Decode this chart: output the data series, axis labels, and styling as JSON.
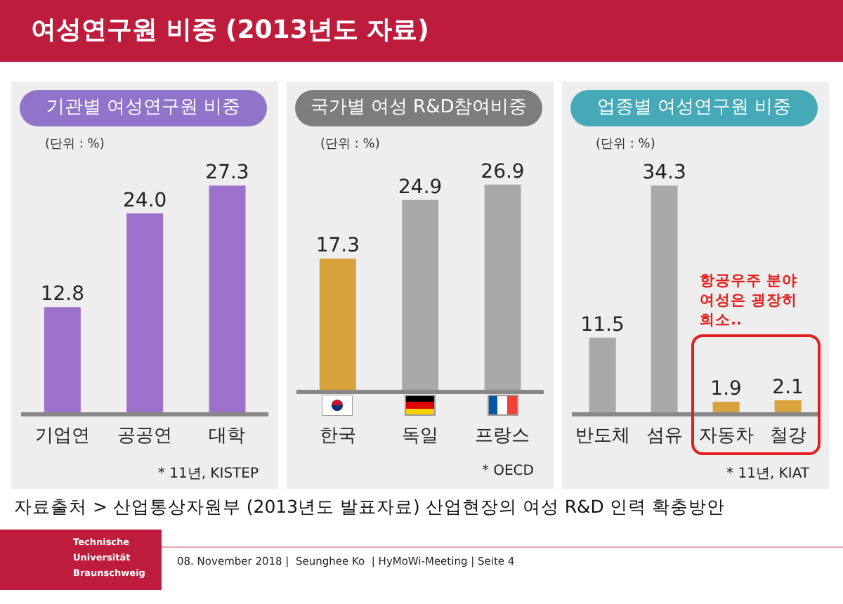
{
  "chart_data": [
    {
      "type": "other",
      "title": "여성연구원 비중 (2013년도 자료)",
      "annotations": [
        "자료출처 > 산업통상자원부 (2013년도 발표자료) 산업현장의 여성 R&D 인력 확충방안",
        "Technische Universität Braunschweig",
        "08. November 2018 |  Seunghee Ko  | HyMoWi-Meeting | Seite 4"
      ]
    },
    {
      "type": "bar",
      "title": "기관별 여성연구원 비중",
      "ylabel": "(단위 : %)",
      "categories": [
        "기업연",
        "공공연",
        "대학"
      ],
      "values": [
        12.8,
        24.0,
        27.3
      ],
      "colors": [
        "#9d72cc",
        "#9d72cc",
        "#9d72cc"
      ],
      "value_labels": [
        "12.8",
        "24.0",
        "27.3"
      ],
      "annotations": [
        "* 11년, KISTEP"
      ]
    },
    {
      "type": "bar",
      "title": "국가별 여성 R&D참여비중",
      "ylabel": "(단위 : %)",
      "categories": [
        "한국",
        "독일",
        "프랑스"
      ],
      "values": [
        17.3,
        24.9,
        26.9
      ],
      "colors": [
        "#d8a23c",
        "#a9a9a9",
        "#a9a9a9"
      ],
      "data_labels": true,
      "annotations": [
        "* OECD"
      ]
    },
    {
      "type": "bar",
      "title": "업종별 여성연구원 비중",
      "ylabel": "(단위 : %)",
      "categories": [
        "반도체",
        "섬유",
        "자동차",
        "철강"
      ],
      "values": [
        11.5,
        34.3,
        1.9,
        2.1
      ],
      "colors": [
        "#a9a9a9",
        "#a9a9a9",
        "#d8a23c",
        "#d8a23c"
      ],
      "data_labels": true,
      "annotations": [
        "항공우주 분야\n여성은 굉장히\n희소..",
        "* 11년, KIAT"
      ]
    }
  ]
}
